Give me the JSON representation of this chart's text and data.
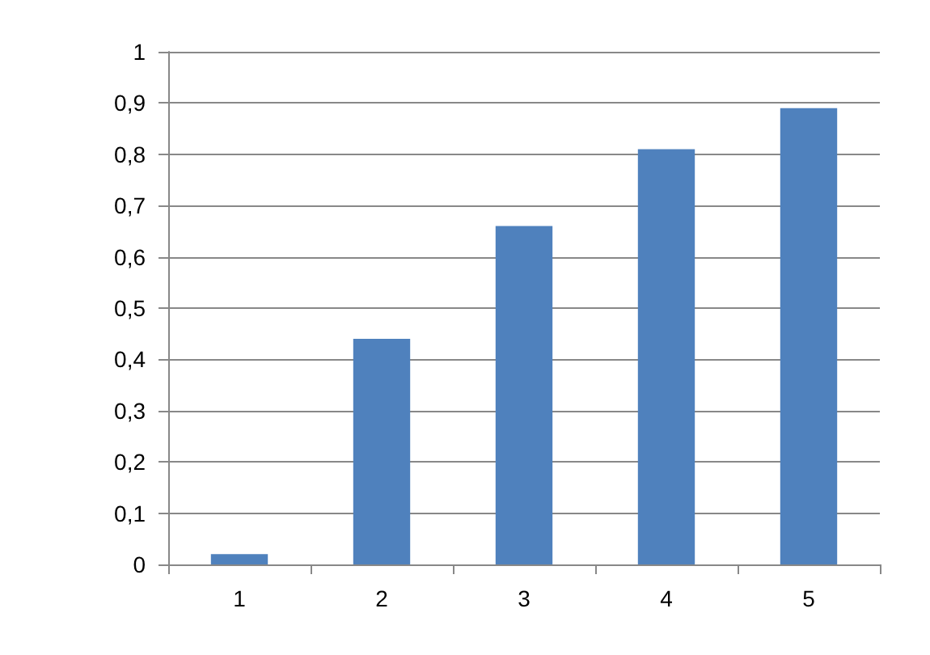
{
  "chart_data": {
    "type": "bar",
    "categories": [
      "1",
      "2",
      "3",
      "4",
      "5"
    ],
    "values": [
      0.02,
      0.44,
      0.66,
      0.81,
      0.89
    ],
    "color": "#4f81bd",
    "ylim": [
      0,
      1
    ],
    "yticks": [
      {
        "value": 0,
        "label": "0"
      },
      {
        "value": 0.1,
        "label": "0,1"
      },
      {
        "value": 0.2,
        "label": "0,2"
      },
      {
        "value": 0.3,
        "label": "0,3"
      },
      {
        "value": 0.4,
        "label": "0,4"
      },
      {
        "value": 0.5,
        "label": "0,5"
      },
      {
        "value": 0.6,
        "label": "0,6"
      },
      {
        "value": 0.7,
        "label": "0,7"
      },
      {
        "value": 0.8,
        "label": "0,8"
      },
      {
        "value": 0.9,
        "label": "0,9"
      },
      {
        "value": 1,
        "label": "1"
      }
    ],
    "grid": "y"
  }
}
